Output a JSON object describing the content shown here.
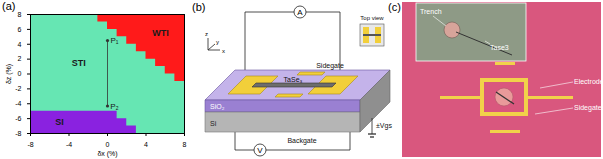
{
  "chart_data": {
    "type": "area",
    "title": "(a)",
    "xlabel": "δx (%)",
    "ylabel": "δz (%)",
    "xlim": [
      -8,
      8
    ],
    "ylim": [
      -8,
      8
    ],
    "xticks": [
      -8,
      -4,
      0,
      4,
      8
    ],
    "yticks": [
      -8,
      -6,
      -4,
      -2,
      0,
      2,
      4,
      6,
      8
    ],
    "series": [
      {
        "name": "STI",
        "color": "#66e6b3",
        "label_at": [
          -3,
          1.5
        ],
        "x": [
          -8,
          8
        ],
        "y_lower": [
          -8,
          -8
        ],
        "y_upper": [
          8,
          8
        ]
      },
      {
        "name": "WTI",
        "color": "#ff1a1a",
        "label_at": [
          5.5,
          5.5
        ],
        "x": [
          -1,
          0,
          1,
          2,
          3,
          4,
          5,
          6,
          7,
          8
        ],
        "y_lower": [
          7,
          6,
          5,
          4,
          3,
          2,
          1,
          0,
          -1,
          -1
        ],
        "y_upper": [
          8,
          8,
          8,
          8,
          8,
          8,
          8,
          8,
          8,
          8
        ]
      },
      {
        "name": "SI",
        "color": "#8a22e0",
        "label_at": [
          -5,
          -6.5
        ],
        "x": [
          -8,
          0,
          1,
          2,
          3,
          8
        ],
        "y_lower": [
          -8,
          -8,
          -8,
          -8,
          -8,
          -8
        ],
        "y_upper": [
          -5,
          -5,
          -6,
          -7,
          -8,
          -8
        ]
      }
    ],
    "points": [
      {
        "label": "P₁",
        "x": 0,
        "y": 4.5
      },
      {
        "label": "P₂",
        "x": 0,
        "y": -4.3
      }
    ]
  },
  "schematic": {
    "label": "(b)",
    "ammeter": "A",
    "voltmeter": "V",
    "channel": "TaSe₃",
    "sidegate": "Sidegate",
    "top_view": "Top view",
    "oxide": "SiO₂",
    "substrate": "Si",
    "backgate": "Backgate",
    "bias": "±Vgs",
    "axes": [
      "x",
      "y",
      "z"
    ]
  },
  "micrograph": {
    "label": "(c)",
    "inset": {
      "trench": "Trench",
      "flake": "Tase3"
    },
    "electrode": "Electrode",
    "sidegate": "Sidegate"
  }
}
